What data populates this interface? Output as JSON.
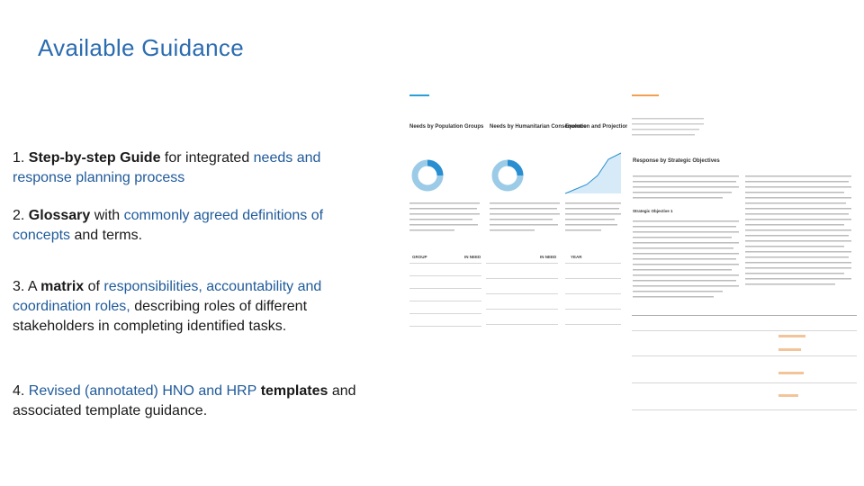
{
  "title": "Available Guidance",
  "items": [
    {
      "segments": [
        {
          "text": "1. ",
          "style": "plain"
        },
        {
          "text": "Step-by-step Guide",
          "style": "bold"
        },
        {
          "text": " for integrated ",
          "style": "plain"
        },
        {
          "text": "needs and response planning process",
          "style": "blue"
        }
      ]
    },
    {
      "segments": [
        {
          "text": "2. ",
          "style": "plain"
        },
        {
          "text": "Glossary",
          "style": "bold"
        },
        {
          "text": " with ",
          "style": "plain"
        },
        {
          "text": "commonly agreed definitions of concepts",
          "style": "blue"
        },
        {
          "text": " and terms.",
          "style": "plain"
        }
      ]
    },
    {
      "segments": [
        {
          "text": "3. A ",
          "style": "plain"
        },
        {
          "text": "matrix",
          "style": "bold"
        },
        {
          "text": " of ",
          "style": "plain"
        },
        {
          "text": "responsibilities, accountability and coordination roles,",
          "style": "blue"
        },
        {
          "text": " describing roles of different stakeholders in completing identified tasks.",
          "style": "plain"
        }
      ]
    },
    {
      "segments": [
        {
          "text": "4. ",
          "style": "plain"
        },
        {
          "text": "Revised (annotated) HNO and HRP",
          "style": "blue"
        },
        {
          "text": " templates",
          "style": "bold"
        },
        {
          "text": " and associated template guidance.",
          "style": "plain"
        }
      ]
    }
  ],
  "thumbnail": {
    "headings": [
      "Needs by Population Groups",
      "Needs by Humanitarian Consequence",
      "Evolution and Projection of Needs",
      "Response by Strategic Objectives",
      "Strategic Objective 1"
    ],
    "table_headers": [
      "GROUP",
      "IN NEED",
      "IN NEED",
      "YEAR"
    ]
  }
}
